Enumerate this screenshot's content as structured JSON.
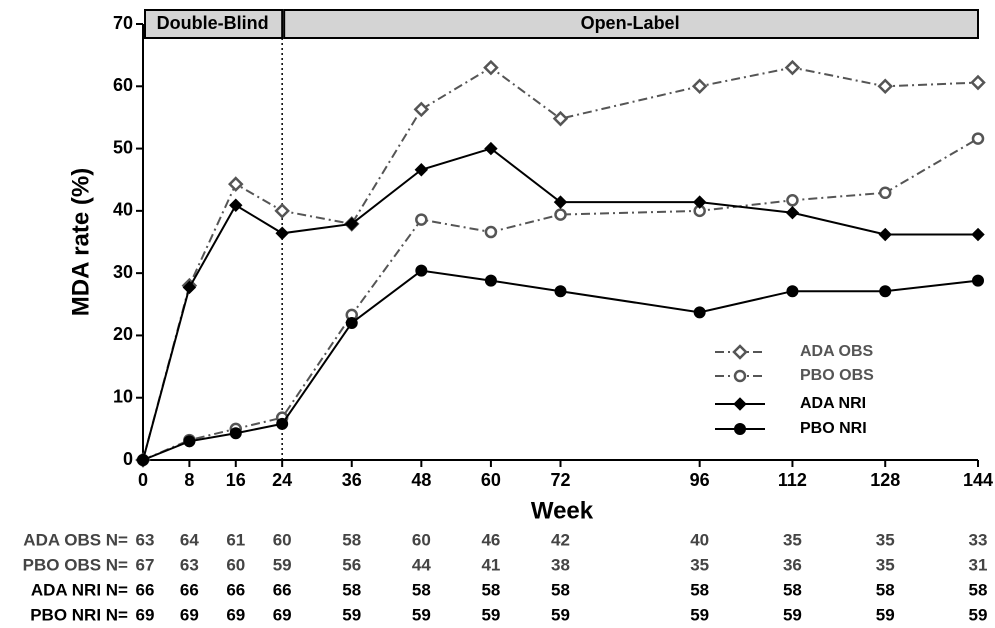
{
  "chart_data": {
    "type": "line",
    "x_label": "Week",
    "y_label": "MDA rate (%)",
    "x": [
      0,
      8,
      16,
      24,
      36,
      48,
      60,
      72,
      96,
      112,
      128,
      144
    ],
    "xlim": [
      0,
      144
    ],
    "xticks": [
      0,
      8,
      16,
      24,
      36,
      48,
      60,
      72,
      96,
      112,
      128,
      144
    ],
    "ylim": [
      0,
      70
    ],
    "yticks": [
      0,
      10,
      20,
      30,
      40,
      50,
      60,
      70
    ],
    "legend_position": "lower right",
    "phases": [
      {
        "label": "Double-Blind",
        "start": 0,
        "end": 24
      },
      {
        "label": "Open-Label",
        "start": 24,
        "end": 144
      }
    ],
    "series": [
      {
        "name": "ADA OBS",
        "color": "#555555",
        "line_style": "dashdot",
        "marker": "diamond",
        "filled": false,
        "values": [
          0,
          28,
          44.3,
          40,
          37.9,
          56.3,
          63,
          54.8,
          60,
          63,
          60,
          60.6
        ]
      },
      {
        "name": "PBO OBS",
        "color": "#555555",
        "line_style": "dashdot",
        "marker": "circle",
        "filled": false,
        "values": [
          0,
          3.2,
          5,
          6.8,
          23.3,
          38.6,
          36.6,
          39.4,
          40,
          41.7,
          42.9,
          51.6
        ]
      },
      {
        "name": "ADA NRI",
        "color": "#000000",
        "line_style": "solid",
        "marker": "diamond",
        "filled": true,
        "values": [
          0,
          27.7,
          40.9,
          36.4,
          37.9,
          46.6,
          50,
          41.4,
          41.4,
          39.7,
          36.2,
          36.2
        ]
      },
      {
        "name": "PBO NRI",
        "color": "#000000",
        "line_style": "solid",
        "marker": "circle",
        "filled": true,
        "values": [
          0,
          3,
          4.3,
          5.8,
          22,
          30.4,
          28.8,
          27.1,
          23.7,
          27.1,
          27.1,
          28.8
        ]
      }
    ],
    "n_table": {
      "rows": [
        {
          "label": "ADA OBS N=",
          "color": "#444444",
          "values": [
            63,
            64,
            61,
            60,
            58,
            60,
            46,
            42,
            40,
            35,
            35,
            33
          ]
        },
        {
          "label": "PBO OBS N=",
          "color": "#444444",
          "values": [
            67,
            63,
            60,
            59,
            56,
            44,
            41,
            38,
            35,
            36,
            35,
            31
          ]
        },
        {
          "label": "ADA NRI N=",
          "color": "#000000",
          "values": [
            66,
            66,
            66,
            66,
            58,
            58,
            58,
            58,
            58,
            58,
            58,
            58
          ]
        },
        {
          "label": "PBO NRI N=",
          "color": "#000000",
          "values": [
            69,
            69,
            69,
            69,
            59,
            59,
            59,
            59,
            59,
            59,
            59,
            59
          ]
        }
      ]
    }
  }
}
